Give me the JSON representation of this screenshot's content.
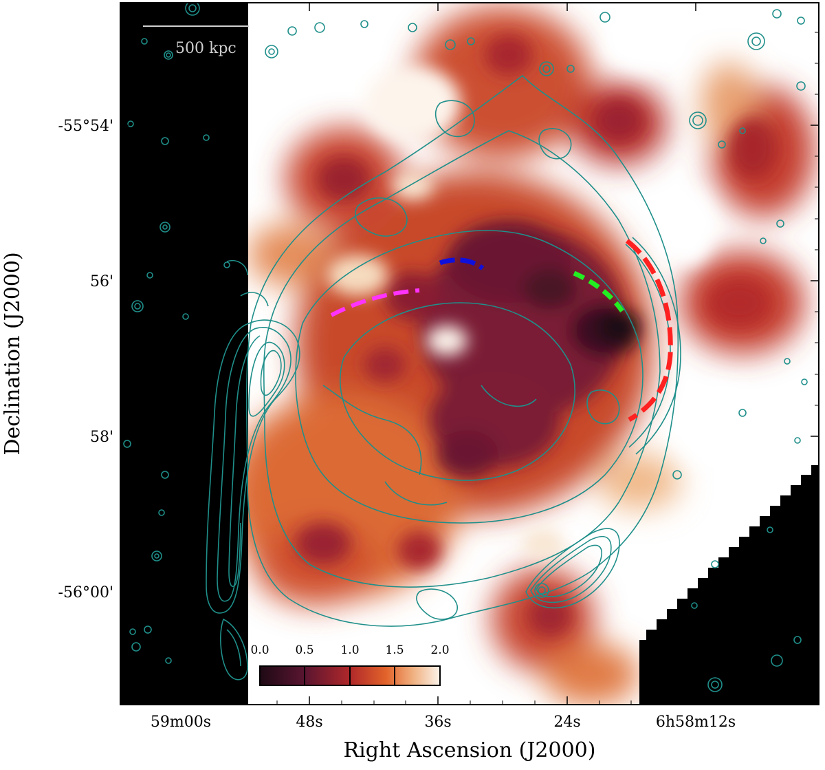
{
  "figure": {
    "scale_bar_label": "500 kpc",
    "xlabel": "Right Ascension (J2000)",
    "ylabel": "Declination (J2000)",
    "x_ticks": [
      "59m00s",
      "48s",
      "36s",
      "24s",
      "6h58m12s"
    ],
    "y_ticks": [
      "-55°54'",
      "56'",
      "58'",
      "-56°00'"
    ],
    "colorbar": {
      "ticks": [
        "0.0",
        "0.5",
        "1.0",
        "1.5",
        "2.0"
      ],
      "range": [
        0.0,
        2.0
      ],
      "colors": [
        "#1e0a14",
        "#5a1530",
        "#b0282a",
        "#e2632a",
        "#f0b080",
        "#fbf3ea"
      ]
    },
    "colors": {
      "contour": "#1f8f8a",
      "arc_magenta": "#ff33ff",
      "arc_blue": "#1010dd",
      "arc_green": "#22ee22",
      "arc_red": "#ff2020",
      "mask": "#000000"
    }
  }
}
